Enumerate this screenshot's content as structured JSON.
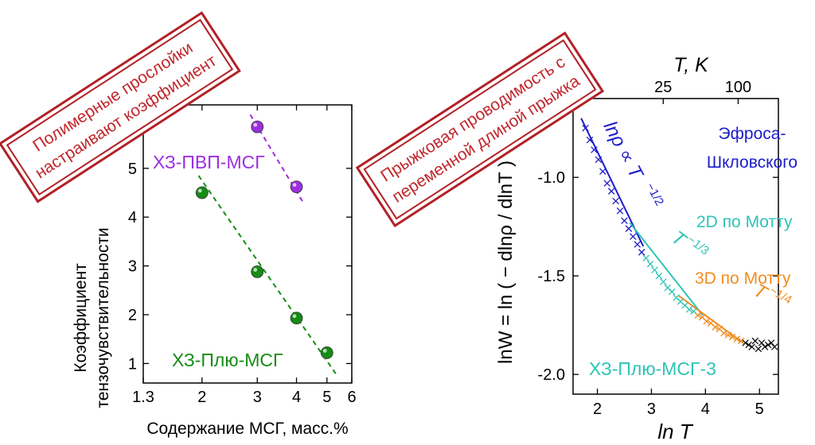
{
  "left_panel": {
    "stamp": {
      "line1": "Полимерные прослойки",
      "line2": "настраивают коэффициент"
    },
    "ylabel_line1": "Коэффициент",
    "ylabel_line2": "тензочувствительности",
    "xlabel": "Содержание МСГ, масс.%",
    "series": [
      {
        "name": "ХЗ-ПВП-МСГ",
        "color": "#9b2fe0",
        "x": [
          3,
          4
        ],
        "y": [
          5.85,
          4.62
        ]
      },
      {
        "name": "ХЗ-Плю-МСГ",
        "color": "#168b16",
        "x": [
          2,
          3,
          4,
          5
        ],
        "y": [
          4.5,
          2.88,
          1.93,
          1.22
        ]
      }
    ]
  },
  "right_panel": {
    "stamp": {
      "line1": "Прыжковая проводимость с",
      "line2": "переменной длиной прыжка"
    },
    "ylabel": "lnW = ln ( − dlnρ / dlnT )",
    "xlabel": "ln T",
    "top_axis_label": "T, K",
    "sample_label": "ХЗ-Плю-МСГ-3",
    "legend": {
      "es_label_line1": "Эфроса-",
      "es_label_line2": "Шкловского",
      "mott2d_label": "2D по Мотту",
      "mott3d_label": "3D по Мотту"
    },
    "fit_formula_es": "lnρ ∝ T",
    "fit_exp_es": "−1/2",
    "fit_formula_2d": "T",
    "fit_exp_2d": "−1/3",
    "fit_formula_3d": "T",
    "fit_exp_3d": "−1/4",
    "colors": {
      "es": "#1c1cc8",
      "mott2d": "#2ec4b6",
      "mott3d": "#f08c1e",
      "data": "#111111"
    }
  },
  "chart_data": [
    {
      "type": "scatter",
      "title": "",
      "xlabel": "Содержание МСГ, масс.%",
      "ylabel": "Коэффициент тензочувствительности",
      "xscale": "log",
      "xlim": [
        1.3,
        6
      ],
      "ylim": [
        0.6,
        6.3
      ],
      "xticks": [
        1.3,
        2,
        3,
        4,
        5,
        6
      ],
      "yticks": [
        1,
        2,
        3,
        4,
        5
      ],
      "series": [
        {
          "name": "ХЗ-ПВП-МСГ",
          "x": [
            3,
            4
          ],
          "y": [
            5.85,
            4.62
          ]
        },
        {
          "name": "ХЗ-Плю-МСГ",
          "x": [
            2,
            3,
            4,
            5
          ],
          "y": [
            4.5,
            2.88,
            1.93,
            1.22
          ]
        }
      ],
      "fits": [
        {
          "series": "ХЗ-ПВП-МСГ",
          "x": [
            2.85,
            4.2
          ],
          "y": [
            6.1,
            4.3
          ]
        },
        {
          "series": "ХЗ-Плю-МСГ",
          "x": [
            1.95,
            5.35
          ],
          "y": [
            4.85,
            0.78
          ]
        }
      ]
    },
    {
      "type": "scatter",
      "title": "",
      "xlabel": "ln T",
      "ylabel": "lnW = ln ( − dlnρ / dlnT )",
      "top_xlabel": "T, K",
      "xlim": [
        1.55,
        5.35
      ],
      "ylim": [
        -2.1,
        -0.6
      ],
      "xticks": [
        2,
        3,
        4,
        5
      ],
      "yticks": [
        -1.0,
        -1.5,
        -2.0
      ],
      "top_ticks": [
        25,
        100
      ],
      "series": [
        {
          "name": "ХЗ-Плю-МСГ-3",
          "x": [
            1.78,
            1.86,
            1.94,
            2.02,
            2.1,
            2.18,
            2.26,
            2.34,
            2.42,
            2.5,
            2.58,
            2.66,
            2.74,
            2.82,
            2.9,
            2.98,
            3.06,
            3.14,
            3.22,
            3.3,
            3.38,
            3.46,
            3.54,
            3.62,
            3.7,
            3.78,
            3.86,
            3.94,
            4.02,
            4.1,
            4.18,
            4.26,
            4.34,
            4.42,
            4.5,
            4.58,
            4.66,
            4.74,
            4.8,
            4.86,
            4.92,
            4.98,
            5.04,
            5.1,
            5.16,
            5.22,
            5.28
          ],
          "y": [
            -0.75,
            -0.81,
            -0.86,
            -0.91,
            -0.97,
            -1.03,
            -1.07,
            -1.12,
            -1.17,
            -1.22,
            -1.26,
            -1.3,
            -1.34,
            -1.38,
            -1.41,
            -1.44,
            -1.47,
            -1.5,
            -1.53,
            -1.56,
            -1.58,
            -1.61,
            -1.63,
            -1.65,
            -1.67,
            -1.68,
            -1.7,
            -1.71,
            -1.73,
            -1.74,
            -1.76,
            -1.77,
            -1.79,
            -1.8,
            -1.81,
            -1.82,
            -1.83,
            -1.84,
            -1.85,
            -1.86,
            -1.83,
            -1.87,
            -1.84,
            -1.86,
            -1.85,
            -1.84,
            -1.86
          ]
        }
      ],
      "fits": [
        {
          "name": "Эфроса-Шкловского",
          "x": [
            1.7,
            2.85
          ],
          "y": [
            -0.7,
            -1.35
          ]
        },
        {
          "name": "2D по Мотту",
          "x": [
            2.6,
            3.95
          ],
          "y": [
            -1.23,
            -1.7
          ]
        },
        {
          "name": "3D по Мотту",
          "x": [
            3.5,
            4.7
          ],
          "y": [
            -1.6,
            -1.84
          ]
        }
      ]
    }
  ]
}
